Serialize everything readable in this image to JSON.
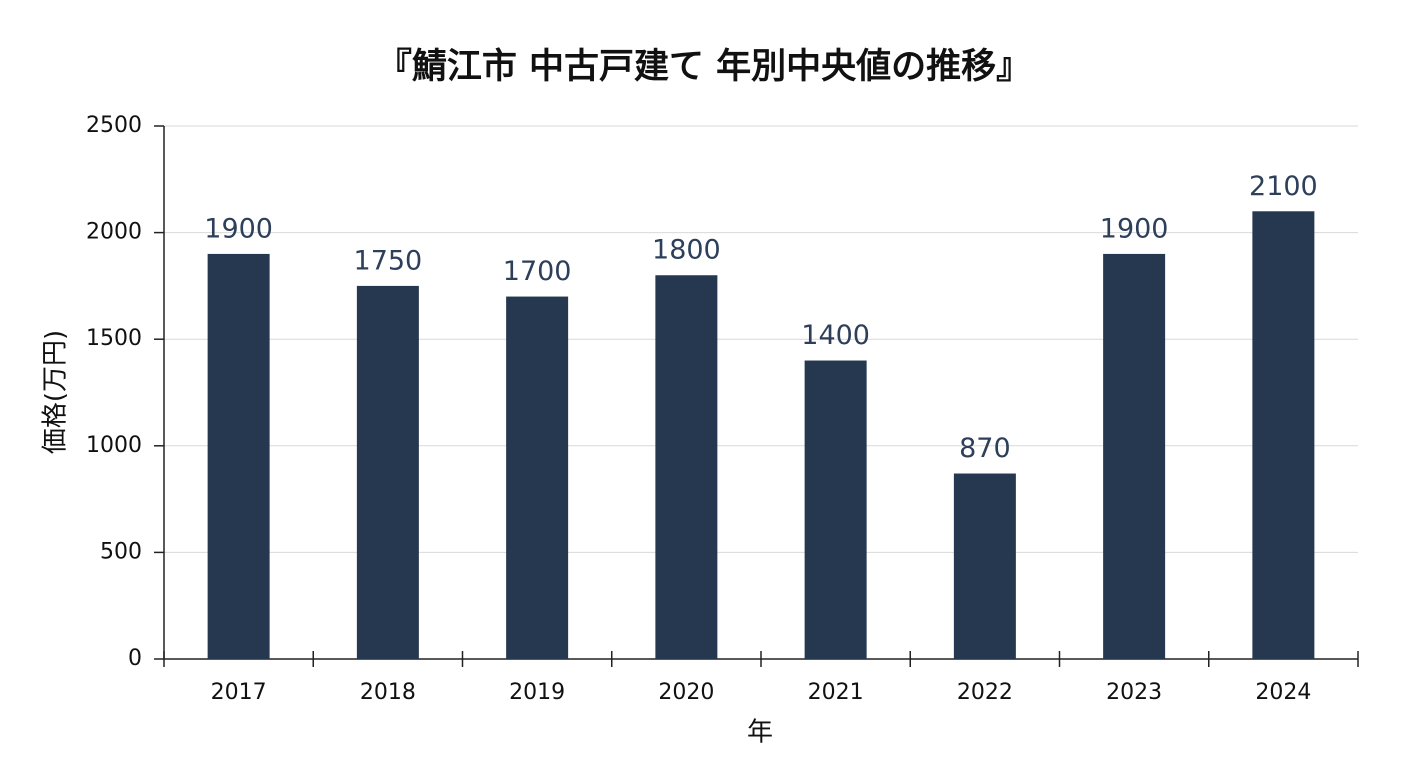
{
  "chart_data": {
    "type": "bar",
    "title": "『鯖江市 中古戸建て 年別中央値の推移』",
    "x_label": "年",
    "y_label": "価格(万円)",
    "categories": [
      "2017",
      "2018",
      "2019",
      "2020",
      "2021",
      "2022",
      "2023",
      "2024"
    ],
    "values": [
      1900,
      1750,
      1700,
      1800,
      1400,
      870,
      1900,
      2100
    ],
    "color": "#263850",
    "ylim": [
      0,
      2500
    ],
    "yticks": [
      0,
      500,
      1000,
      1500,
      2000,
      2500
    ],
    "grid": true
  }
}
